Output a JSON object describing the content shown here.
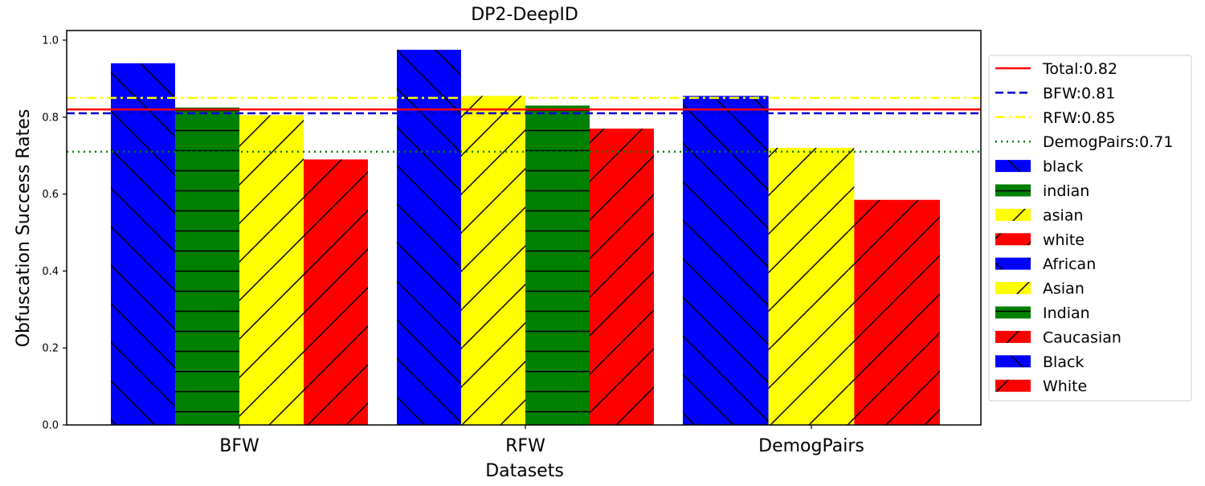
{
  "chart_data": {
    "type": "bar",
    "title": "DP2-DeepID",
    "xlabel": "Datasets",
    "ylabel": "Obfuscation Success Rates",
    "ylim": [
      0,
      1.025
    ],
    "yticks": [
      "0.0",
      "0.2",
      "0.4",
      "0.6",
      "0.8",
      "1.0"
    ],
    "grid": false,
    "legend_position": "right",
    "categories": [
      "BFW",
      "RFW",
      "DemogPairs"
    ],
    "groups": [
      {
        "category": "BFW",
        "bars": [
          {
            "label": "black",
            "value": 0.94,
            "color": "#0000ff",
            "hatch": "back"
          },
          {
            "label": "indian",
            "value": 0.825,
            "color": "#008000",
            "hatch": "horizontal"
          },
          {
            "label": "asian",
            "value": 0.805,
            "color": "#ffff00",
            "hatch": "forward"
          },
          {
            "label": "white",
            "value": 0.69,
            "color": "#ff0000",
            "hatch": "forward"
          }
        ]
      },
      {
        "category": "RFW",
        "bars": [
          {
            "label": "African",
            "value": 0.975,
            "color": "#0000ff",
            "hatch": "back"
          },
          {
            "label": "Asian",
            "value": 0.855,
            "color": "#ffff00",
            "hatch": "forward"
          },
          {
            "label": "Indian",
            "value": 0.83,
            "color": "#008000",
            "hatch": "horizontal"
          },
          {
            "label": "Caucasian",
            "value": 0.77,
            "color": "#ff0000",
            "hatch": "forward"
          }
        ]
      },
      {
        "category": "DemogPairs",
        "bars": [
          {
            "label": "Black",
            "value": 0.855,
            "color": "#0000ff",
            "hatch": "back"
          },
          {
            "label": "Asian",
            "value": 0.72,
            "color": "#ffff00",
            "hatch": "forward"
          },
          {
            "label": "White",
            "value": 0.585,
            "color": "#ff0000",
            "hatch": "forward"
          }
        ]
      }
    ],
    "reference_lines": [
      {
        "label": "Total:0.82",
        "value": 0.82,
        "color": "#ff0000",
        "style": "solid"
      },
      {
        "label": "BFW:0.81",
        "value": 0.81,
        "color": "#0000cc",
        "style": "dashed"
      },
      {
        "label": "RFW:0.85",
        "value": 0.85,
        "color": "#ffff00",
        "style": "dashdot"
      },
      {
        "label": "DemogPairs:0.71",
        "value": 0.71,
        "color": "#008000",
        "style": "dotted"
      }
    ],
    "legend": [
      {
        "label": "Total:0.82",
        "kind": "line",
        "color": "#ff0000",
        "style": "solid"
      },
      {
        "label": "BFW:0.81",
        "kind": "line",
        "color": "#0000cc",
        "style": "dashed"
      },
      {
        "label": "RFW:0.85",
        "kind": "line",
        "color": "#ffff00",
        "style": "dashdot"
      },
      {
        "label": "DemogPairs:0.71",
        "kind": "line",
        "color": "#008000",
        "style": "dotted"
      },
      {
        "label": "black",
        "kind": "patch",
        "color": "#0000ff",
        "hatch": "back"
      },
      {
        "label": "indian",
        "kind": "patch",
        "color": "#008000",
        "hatch": "horizontal"
      },
      {
        "label": "asian",
        "kind": "patch",
        "color": "#ffff00",
        "hatch": "forward"
      },
      {
        "label": "white",
        "kind": "patch",
        "color": "#ff0000",
        "hatch": "forward"
      },
      {
        "label": "African",
        "kind": "patch",
        "color": "#0000ff",
        "hatch": "back"
      },
      {
        "label": "Asian",
        "kind": "patch",
        "color": "#ffff00",
        "hatch": "forward"
      },
      {
        "label": "Indian",
        "kind": "patch",
        "color": "#008000",
        "hatch": "horizontal"
      },
      {
        "label": "Caucasian",
        "kind": "patch",
        "color": "#ff0000",
        "hatch": "forward"
      },
      {
        "label": "Black",
        "kind": "patch",
        "color": "#0000ff",
        "hatch": "back"
      },
      {
        "label": "White",
        "kind": "patch",
        "color": "#ff0000",
        "hatch": "forward"
      }
    ]
  }
}
